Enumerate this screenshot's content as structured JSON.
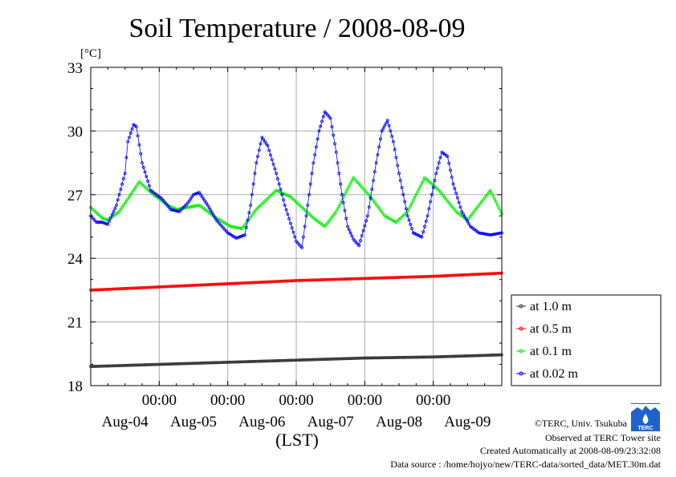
{
  "chart_data": {
    "type": "line",
    "title": "Soil Temperature / 2008-08-09",
    "ylabel": "[°C]",
    "xlabel": "(LST)",
    "ylim": [
      18,
      33
    ],
    "yticks": [
      18,
      21,
      24,
      27,
      30,
      33
    ],
    "x_range_hours": [
      0,
      144
    ],
    "time_ticks": [
      {
        "hour": 24,
        "label": "00:00"
      },
      {
        "hour": 48,
        "label": "00:00"
      },
      {
        "hour": 72,
        "label": "00:00"
      },
      {
        "hour": 96,
        "label": "00:00"
      },
      {
        "hour": 120,
        "label": "00:00"
      }
    ],
    "date_labels": [
      {
        "hour": 12,
        "label": "Aug-04"
      },
      {
        "hour": 36,
        "label": "Aug-05"
      },
      {
        "hour": 60,
        "label": "Aug-06"
      },
      {
        "hour": 84,
        "label": "Aug-07"
      },
      {
        "hour": 108,
        "label": "Aug-08"
      },
      {
        "hour": 132,
        "label": "Aug-09"
      }
    ],
    "grid": true,
    "legend_position": "right",
    "series": [
      {
        "name": "at 1.0 m",
        "color": "#333333",
        "points": [
          [
            0,
            18.9
          ],
          [
            24,
            19.0
          ],
          [
            48,
            19.1
          ],
          [
            72,
            19.2
          ],
          [
            96,
            19.3
          ],
          [
            120,
            19.35
          ],
          [
            144,
            19.45
          ]
        ]
      },
      {
        "name": "at 0.5 m",
        "color": "#ff0000",
        "points": [
          [
            0,
            22.5
          ],
          [
            24,
            22.65
          ],
          [
            48,
            22.8
          ],
          [
            72,
            22.95
          ],
          [
            96,
            23.05
          ],
          [
            120,
            23.15
          ],
          [
            144,
            23.3
          ]
        ]
      },
      {
        "name": "at 0.1 m",
        "color": "#00ee00",
        "points": [
          [
            0,
            26.4
          ],
          [
            4,
            25.9
          ],
          [
            6,
            25.8
          ],
          [
            10,
            26.2
          ],
          [
            17,
            27.6
          ],
          [
            22,
            27.0
          ],
          [
            27,
            26.5
          ],
          [
            30,
            26.3
          ],
          [
            38,
            26.5
          ],
          [
            44,
            25.9
          ],
          [
            49,
            25.5
          ],
          [
            53,
            25.4
          ],
          [
            58,
            26.3
          ],
          [
            65,
            27.2
          ],
          [
            70,
            26.9
          ],
          [
            78,
            25.9
          ],
          [
            82,
            25.5
          ],
          [
            86,
            26.2
          ],
          [
            92,
            27.8
          ],
          [
            98,
            26.9
          ],
          [
            103,
            26.0
          ],
          [
            107,
            25.7
          ],
          [
            111,
            26.2
          ],
          [
            117,
            27.8
          ],
          [
            122,
            27.2
          ],
          [
            128,
            26.2
          ],
          [
            132,
            25.8
          ],
          [
            136,
            26.5
          ],
          [
            140,
            27.2
          ],
          [
            144,
            26.1
          ]
        ]
      },
      {
        "name": "at 0.02 m",
        "color": "#0000ff",
        "points": [
          [
            0,
            26.0
          ],
          [
            2,
            25.7
          ],
          [
            4,
            25.7
          ],
          [
            6,
            25.6
          ],
          [
            9,
            26.5
          ],
          [
            12,
            28.0
          ],
          [
            13,
            29.5
          ],
          [
            15,
            30.3
          ],
          [
            16,
            30.2
          ],
          [
            18,
            28.5
          ],
          [
            21,
            27.2
          ],
          [
            25,
            26.8
          ],
          [
            28,
            26.3
          ],
          [
            31,
            26.2
          ],
          [
            34,
            26.6
          ],
          [
            36,
            27.0
          ],
          [
            38,
            27.1
          ],
          [
            41,
            26.5
          ],
          [
            44,
            25.8
          ],
          [
            48,
            25.2
          ],
          [
            51,
            24.95
          ],
          [
            54,
            25.1
          ],
          [
            56,
            26.5
          ],
          [
            58,
            28.5
          ],
          [
            60,
            29.7
          ],
          [
            62,
            29.3
          ],
          [
            65,
            28.0
          ],
          [
            68,
            26.5
          ],
          [
            72,
            24.8
          ],
          [
            74,
            24.5
          ],
          [
            76,
            26.5
          ],
          [
            78,
            28.5
          ],
          [
            80,
            30.0
          ],
          [
            82,
            30.9
          ],
          [
            84,
            30.6
          ],
          [
            86,
            29.0
          ],
          [
            88,
            27.0
          ],
          [
            90,
            25.5
          ],
          [
            92,
            24.9
          ],
          [
            94,
            24.6
          ],
          [
            97,
            26.0
          ],
          [
            100,
            28.5
          ],
          [
            102,
            30.0
          ],
          [
            104,
            30.5
          ],
          [
            106,
            29.5
          ],
          [
            108,
            28.0
          ],
          [
            111,
            26.0
          ],
          [
            113,
            25.2
          ],
          [
            116,
            25.0
          ],
          [
            118,
            26.0
          ],
          [
            121,
            28.0
          ],
          [
            123,
            29.0
          ],
          [
            125,
            28.8
          ],
          [
            127,
            27.5
          ],
          [
            130,
            26.2
          ],
          [
            133,
            25.5
          ],
          [
            136,
            25.2
          ],
          [
            140,
            25.1
          ],
          [
            144,
            25.2
          ]
        ]
      }
    ]
  },
  "credits": {
    "copyright": "©TERC, Univ. Tsukuba",
    "observed": "Observed at TERC Tower site",
    "created": "Created Automatically at 2008-08-09/23:32:08",
    "source": "Data source : /home/hojyo/new/TERC-data/sorted_data/MET.30m.dat",
    "logo_text": "TERC"
  }
}
